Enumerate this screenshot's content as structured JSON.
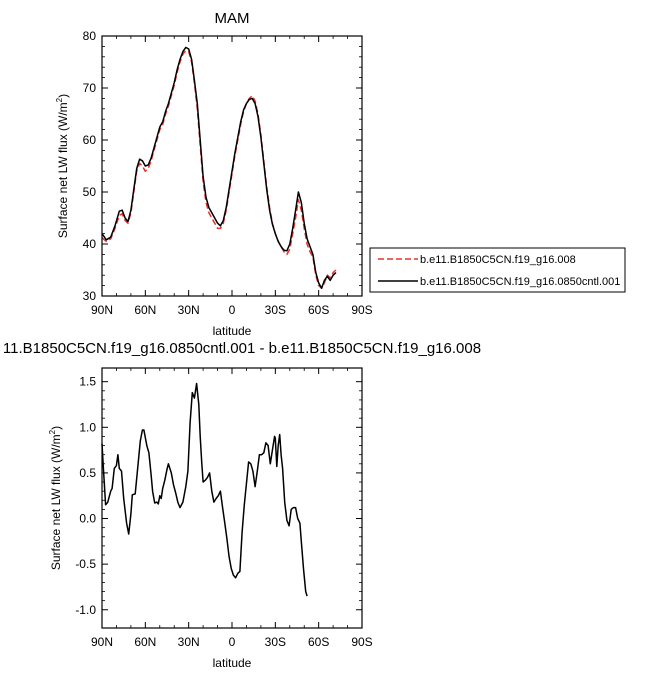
{
  "chart_data": [
    {
      "type": "line",
      "title": "MAM",
      "xlabel": "latitude",
      "ylabel": "Surface net LW flux (W/m",
      "ylabel_sup": "2",
      "ylabel_close": ")",
      "xlim": [
        90,
        -90
      ],
      "ylim": [
        30,
        80
      ],
      "xticks": [
        90,
        60,
        30,
        0,
        -30,
        -60,
        -90
      ],
      "xtick_labels": [
        "90N",
        "60N",
        "30N",
        "0",
        "30S",
        "60S",
        "90S"
      ],
      "yticks": [
        30,
        40,
        50,
        60,
        70,
        80
      ],
      "ytick_labels": [
        "30",
        "40",
        "50",
        "60",
        "70",
        "80"
      ],
      "legend": "right",
      "series": [
        {
          "name": "b.e11.B1850C5CN.f19_g16.008",
          "color": "#e8312f",
          "dash": "dashed",
          "points": [
            [
              90,
              41.2
            ],
            [
              87,
              40.5
            ],
            [
              84,
              41.0
            ],
            [
              81,
              43.0
            ],
            [
              78,
              45.5
            ],
            [
              76,
              45.8
            ],
            [
              74,
              44.5
            ],
            [
              72,
              44.0
            ],
            [
              70,
              46.0
            ],
            [
              68,
              50.0
            ],
            [
              66,
              54.0
            ],
            [
              64,
              55.5
            ],
            [
              62,
              55.0
            ],
            [
              60,
              54.0
            ],
            [
              58,
              54.5
            ],
            [
              56,
              56.0
            ],
            [
              54,
              58.0
            ],
            [
              52,
              60.0
            ],
            [
              50,
              62.0
            ],
            [
              48,
              63.0
            ],
            [
              46,
              65.0
            ],
            [
              44,
              66.5
            ],
            [
              42,
              68.5
            ],
            [
              40,
              70.5
            ],
            [
              38,
              73.0
            ],
            [
              36,
              75.0
            ],
            [
              34,
              76.5
            ],
            [
              32,
              77.2
            ],
            [
              30,
              77.0
            ],
            [
              28,
              75.0
            ],
            [
              26,
              71.0
            ],
            [
              24,
              66.0
            ],
            [
              22,
              59.0
            ],
            [
              20,
              52.0
            ],
            [
              18,
              48.0
            ],
            [
              16,
              46.0
            ],
            [
              14,
              45.0
            ],
            [
              12,
              44.0
            ],
            [
              10,
              43.0
            ],
            [
              8,
              43.0
            ],
            [
              6,
              44.0
            ],
            [
              4,
              46.5
            ],
            [
              2,
              50.0
            ],
            [
              0,
              53.5
            ],
            [
              -2,
              57.0
            ],
            [
              -4,
              60.0
            ],
            [
              -6,
              63.0
            ],
            [
              -8,
              65.5
            ],
            [
              -10,
              67.0
            ],
            [
              -12,
              68.0
            ],
            [
              -14,
              68.5
            ],
            [
              -16,
              67.5
            ],
            [
              -18,
              65.0
            ],
            [
              -20,
              61.0
            ],
            [
              -22,
              56.0
            ],
            [
              -24,
              51.0
            ],
            [
              -26,
              47.0
            ],
            [
              -28,
              44.0
            ],
            [
              -30,
              42.0
            ],
            [
              -32,
              40.5
            ],
            [
              -34,
              39.5
            ],
            [
              -36,
              38.5
            ],
            [
              -38,
              38.0
            ],
            [
              -40,
              39.0
            ],
            [
              -42,
              42.0
            ],
            [
              -44,
              45.0
            ],
            [
              -46,
              48.5
            ],
            [
              -48,
              46.5
            ],
            [
              -50,
              43.0
            ],
            [
              -52,
              40.0
            ],
            [
              -54,
              38.5
            ],
            [
              -56,
              37.5
            ],
            [
              -58,
              34.0
            ],
            [
              -60,
              32.0
            ],
            [
              -62,
              31.5
            ],
            [
              -64,
              32.5
            ],
            [
              -66,
              34.0
            ],
            [
              -68,
              33.5
            ],
            [
              -70,
              34.5
            ],
            [
              -72,
              35.0
            ]
          ]
        },
        {
          "name": "b.e11.B1850C5CN.f19_g16.0850cntl.001",
          "color": "#000000",
          "dash": "solid",
          "points": [
            [
              90,
              42.0
            ],
            [
              87,
              40.8
            ],
            [
              84,
              41.3
            ],
            [
              81,
              43.5
            ],
            [
              78,
              46.3
            ],
            [
              76,
              46.5
            ],
            [
              74,
              45.0
            ],
            [
              72,
              44.3
            ],
            [
              70,
              46.5
            ],
            [
              68,
              50.5
            ],
            [
              66,
              54.5
            ],
            [
              64,
              56.3
            ],
            [
              62,
              56.0
            ],
            [
              60,
              55.0
            ],
            [
              58,
              55.2
            ],
            [
              56,
              56.5
            ],
            [
              54,
              58.5
            ],
            [
              52,
              60.5
            ],
            [
              50,
              62.5
            ],
            [
              48,
              63.5
            ],
            [
              46,
              65.5
            ],
            [
              44,
              67.0
            ],
            [
              42,
              69.0
            ],
            [
              40,
              71.0
            ],
            [
              38,
              73.5
            ],
            [
              36,
              75.5
            ],
            [
              34,
              77.0
            ],
            [
              32,
              77.8
            ],
            [
              30,
              77.5
            ],
            [
              28,
              75.5
            ],
            [
              26,
              71.5
            ],
            [
              24,
              67.0
            ],
            [
              22,
              60.0
            ],
            [
              20,
              53.0
            ],
            [
              18,
              49.0
            ],
            [
              16,
              47.0
            ],
            [
              14,
              46.0
            ],
            [
              12,
              45.0
            ],
            [
              10,
              44.0
            ],
            [
              8,
              43.5
            ],
            [
              6,
              44.5
            ],
            [
              4,
              47.0
            ],
            [
              2,
              50.5
            ],
            [
              0,
              54.0
            ],
            [
              -2,
              57.5
            ],
            [
              -4,
              60.5
            ],
            [
              -6,
              63.5
            ],
            [
              -8,
              65.8
            ],
            [
              -10,
              67.0
            ],
            [
              -12,
              67.8
            ],
            [
              -14,
              68.0
            ],
            [
              -16,
              67.0
            ],
            [
              -18,
              64.5
            ],
            [
              -20,
              60.5
            ],
            [
              -22,
              55.5
            ],
            [
              -24,
              50.5
            ],
            [
              -26,
              46.5
            ],
            [
              -28,
              43.8
            ],
            [
              -30,
              42.0
            ],
            [
              -32,
              40.5
            ],
            [
              -34,
              39.5
            ],
            [
              -36,
              38.8
            ],
            [
              -38,
              38.7
            ],
            [
              -40,
              40.0
            ],
            [
              -42,
              43.0
            ],
            [
              -44,
              46.5
            ],
            [
              -46,
              50.0
            ],
            [
              -48,
              48.0
            ],
            [
              -50,
              44.0
            ],
            [
              -52,
              41.0
            ],
            [
              -54,
              39.5
            ],
            [
              -56,
              38.0
            ],
            [
              -58,
              34.5
            ],
            [
              -60,
              32.5
            ],
            [
              -62,
              31.5
            ],
            [
              -64,
              33.0
            ],
            [
              -66,
              33.8
            ],
            [
              -68,
              33.0
            ],
            [
              -70,
              34.0
            ],
            [
              -72,
              34.5
            ]
          ]
        }
      ]
    },
    {
      "type": "line",
      "title": "11.B1850C5CN.f19_g16.0850cntl.001 - b.e11.B1850C5CN.f19_g16.008",
      "xlabel": "latitude",
      "ylabel": "Surface net LW flux (W/m",
      "ylabel_sup": "2",
      "ylabel_close": ")",
      "xlim": [
        90,
        -90
      ],
      "ylim": [
        -1.2,
        1.65
      ],
      "xticks": [
        90,
        60,
        30,
        0,
        -30,
        -60,
        -90
      ],
      "xtick_labels": [
        "90N",
        "60N",
        "30N",
        "0",
        "30S",
        "60S",
        "90S"
      ],
      "yticks": [
        -1.0,
        -0.5,
        0.0,
        0.5,
        1.0,
        1.5
      ],
      "ytick_labels": [
        "-1.0",
        "-0.5",
        "0.0",
        "0.5",
        "1.0",
        "1.5"
      ],
      "series": [
        {
          "color": "#000000",
          "dash": "solid",
          "points": [
            [
              90,
              0.82
            ],
            [
              89,
              0.55
            ],
            [
              87.5,
              0.15
            ],
            [
              86,
              0.18
            ],
            [
              84,
              0.3
            ],
            [
              83,
              0.33
            ],
            [
              81.5,
              0.55
            ],
            [
              80,
              0.58
            ],
            [
              79,
              0.7
            ],
            [
              78,
              0.55
            ],
            [
              76.5,
              0.52
            ],
            [
              75,
              0.22
            ],
            [
              73,
              -0.05
            ],
            [
              71.5,
              -0.17
            ],
            [
              70,
              0.05
            ],
            [
              69,
              0.26
            ],
            [
              67,
              0.27
            ],
            [
              65,
              0.6
            ],
            [
              63.5,
              0.85
            ],
            [
              62,
              0.97
            ],
            [
              61,
              0.97
            ],
            [
              59,
              0.8
            ],
            [
              57.5,
              0.72
            ],
            [
              56,
              0.48
            ],
            [
              55,
              0.3
            ],
            [
              53.5,
              0.17
            ],
            [
              52,
              0.18
            ],
            [
              51,
              0.16
            ],
            [
              50,
              0.25
            ],
            [
              49,
              0.22
            ],
            [
              48,
              0.33
            ],
            [
              46.5,
              0.42
            ],
            [
              45,
              0.54
            ],
            [
              44,
              0.6
            ],
            [
              42,
              0.5
            ],
            [
              40.5,
              0.37
            ],
            [
              39,
              0.28
            ],
            [
              37.5,
              0.18
            ],
            [
              36,
              0.12
            ],
            [
              34,
              0.18
            ],
            [
              32,
              0.35
            ],
            [
              30.5,
              0.52
            ],
            [
              29,
              1.05
            ],
            [
              27.5,
              1.38
            ],
            [
              26,
              1.32
            ],
            [
              24.5,
              1.48
            ],
            [
              23,
              1.25
            ],
            [
              22,
              0.9
            ],
            [
              21,
              0.62
            ],
            [
              20,
              0.4
            ],
            [
              18.5,
              0.42
            ],
            [
              17,
              0.45
            ],
            [
              15.5,
              0.5
            ],
            [
              14,
              0.3
            ],
            [
              12.5,
              0.18
            ],
            [
              11,
              0.22
            ],
            [
              9.5,
              0.25
            ],
            [
              8,
              0.3
            ],
            [
              6.5,
              0.12
            ],
            [
              5,
              -0.05
            ],
            [
              3.5,
              -0.22
            ],
            [
              2,
              -0.42
            ],
            [
              0.5,
              -0.55
            ],
            [
              -1,
              -0.62
            ],
            [
              -2.5,
              -0.65
            ],
            [
              -4,
              -0.6
            ],
            [
              -5.5,
              -0.58
            ],
            [
              -7,
              -0.15
            ],
            [
              -8.5,
              0.15
            ],
            [
              -10,
              0.38
            ],
            [
              -11.5,
              0.62
            ],
            [
              -13,
              0.6
            ],
            [
              -14.5,
              0.52
            ],
            [
              -16,
              0.35
            ],
            [
              -17.5,
              0.52
            ],
            [
              -19,
              0.7
            ],
            [
              -20.5,
              0.7
            ],
            [
              -22,
              0.72
            ],
            [
              -23.5,
              0.83
            ],
            [
              -25,
              0.8
            ],
            [
              -26.5,
              0.6
            ],
            [
              -28,
              0.75
            ],
            [
              -29.5,
              0.9
            ],
            [
              -30,
              0.88
            ],
            [
              -31,
              0.57
            ],
            [
              -32,
              0.8
            ],
            [
              -33,
              0.92
            ],
            [
              -34,
              0.7
            ],
            [
              -35,
              0.55
            ],
            [
              -36.5,
              0.18
            ],
            [
              -38,
              -0.02
            ],
            [
              -39.5,
              -0.08
            ],
            [
              -41,
              0.1
            ],
            [
              -42.5,
              0.12
            ],
            [
              -44,
              0.12
            ],
            [
              -45.5,
              0.0
            ],
            [
              -47,
              -0.05
            ],
            [
              -48,
              -0.25
            ],
            [
              -49.5,
              -0.55
            ],
            [
              -51,
              -0.8
            ],
            [
              -52,
              -0.85
            ]
          ]
        }
      ]
    }
  ]
}
